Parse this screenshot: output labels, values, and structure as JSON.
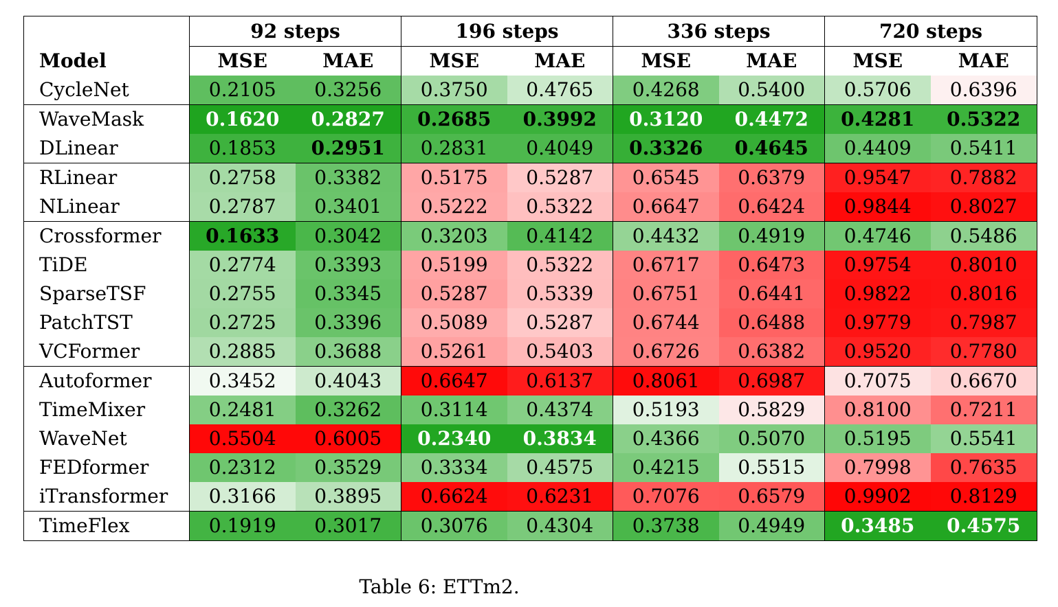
{
  "table": {
    "model_header": "Model",
    "groups": [
      "92 steps",
      "196 steps",
      "336 steps",
      "720 steps"
    ],
    "metrics": [
      "MSE",
      "MAE"
    ],
    "rows": [
      {
        "model": "CycleNet",
        "sep": false,
        "cells": [
          {
            "v": "0.2105",
            "bg": "#5fbe5f"
          },
          {
            "v": "0.3256",
            "bg": "#5fbe5f"
          },
          {
            "v": "0.3750",
            "bg": "#a6dba6"
          },
          {
            "v": "0.4765",
            "bg": "#cbeacb"
          },
          {
            "v": "0.4268",
            "bg": "#80cc80"
          },
          {
            "v": "0.5400",
            "bg": "#b1dfb1"
          },
          {
            "v": "0.5706",
            "bg": "#c2e6c2"
          },
          {
            "v": "0.6396",
            "bg": "#fdf0f0"
          }
        ]
      },
      {
        "model": "WaveMask",
        "sep": true,
        "cells": [
          {
            "v": "0.1620",
            "bg": "#1fa41f",
            "bold": true,
            "white": true
          },
          {
            "v": "0.2827",
            "bg": "#1fa41f",
            "bold": true,
            "white": true
          },
          {
            "v": "0.2685",
            "bg": "#3bb13b",
            "bold": true
          },
          {
            "v": "0.3992",
            "bg": "#3bb13b",
            "bold": true
          },
          {
            "v": "0.3120",
            "bg": "#21a621",
            "bold": true,
            "white": true
          },
          {
            "v": "0.4472",
            "bg": "#21a621",
            "bold": true,
            "white": true
          },
          {
            "v": "0.4281",
            "bg": "#3cb33c",
            "bold": true
          },
          {
            "v": "0.5322",
            "bg": "#3cb33c",
            "bold": true
          }
        ]
      },
      {
        "model": "DLinear",
        "sep": false,
        "cells": [
          {
            "v": "0.1853",
            "bg": "#3eb23e"
          },
          {
            "v": "0.2951",
            "bg": "#3eb23e",
            "bold": true
          },
          {
            "v": "0.2831",
            "bg": "#4db84d"
          },
          {
            "v": "0.4049",
            "bg": "#4db84d"
          },
          {
            "v": "0.3326",
            "bg": "#36af36",
            "bold": true
          },
          {
            "v": "0.4645",
            "bg": "#36af36",
            "bold": true
          },
          {
            "v": "0.4409",
            "bg": "#6ec56e"
          },
          {
            "v": "0.5411",
            "bg": "#7ac97a"
          }
        ]
      },
      {
        "model": "RLinear",
        "sep": true,
        "cells": [
          {
            "v": "0.2758",
            "bg": "#a5daa5"
          },
          {
            "v": "0.3382",
            "bg": "#6ac36a"
          },
          {
            "v": "0.5175",
            "bg": "#ffa6a6"
          },
          {
            "v": "0.5287",
            "bg": "#ffc8c8"
          },
          {
            "v": "0.6545",
            "bg": "#ff9494"
          },
          {
            "v": "0.6379",
            "bg": "#ff7070"
          },
          {
            "v": "0.9547",
            "bg": "#ff2020"
          },
          {
            "v": "0.7882",
            "bg": "#ff2424"
          }
        ]
      },
      {
        "model": "NLinear",
        "sep": false,
        "cells": [
          {
            "v": "0.2787",
            "bg": "#a8dba8"
          },
          {
            "v": "0.3401",
            "bg": "#6bc46b"
          },
          {
            "v": "0.5222",
            "bg": "#ffa8a8"
          },
          {
            "v": "0.5322",
            "bg": "#ffc0c0"
          },
          {
            "v": "0.6647",
            "bg": "#ff8c8c"
          },
          {
            "v": "0.6424",
            "bg": "#ff6c6c"
          },
          {
            "v": "0.9844",
            "bg": "#ff0a0a"
          },
          {
            "v": "0.8027",
            "bg": "#ff1010"
          }
        ]
      },
      {
        "model": "Crossformer",
        "sep": true,
        "cells": [
          {
            "v": "0.1633",
            "bg": "#28a828",
            "bold": true
          },
          {
            "v": "0.3042",
            "bg": "#4ab74a"
          },
          {
            "v": "0.3203",
            "bg": "#7acb7a"
          },
          {
            "v": "0.4142",
            "bg": "#55bb55"
          },
          {
            "v": "0.4432",
            "bg": "#95d495"
          },
          {
            "v": "0.4919",
            "bg": "#6ec56e"
          },
          {
            "v": "0.4746",
            "bg": "#72c772"
          },
          {
            "v": "0.5486",
            "bg": "#8ed18e"
          }
        ]
      },
      {
        "model": "TiDE",
        "sep": false,
        "cells": [
          {
            "v": "0.2774",
            "bg": "#a4daa4"
          },
          {
            "v": "0.3393",
            "bg": "#6ac46a"
          },
          {
            "v": "0.5199",
            "bg": "#ffa4a4"
          },
          {
            "v": "0.5322",
            "bg": "#ffbebe"
          },
          {
            "v": "0.6717",
            "bg": "#ff8484"
          },
          {
            "v": "0.6473",
            "bg": "#ff6464"
          },
          {
            "v": "0.9754",
            "bg": "#ff1515"
          },
          {
            "v": "0.8010",
            "bg": "#ff1515"
          }
        ]
      },
      {
        "model": "SparseTSF",
        "sep": false,
        "cells": [
          {
            "v": "0.2755",
            "bg": "#a3d9a3"
          },
          {
            "v": "0.3345",
            "bg": "#66c266"
          },
          {
            "v": "0.5287",
            "bg": "#ffa0a0"
          },
          {
            "v": "0.5339",
            "bg": "#ffbdbd"
          },
          {
            "v": "0.6751",
            "bg": "#ff8282"
          },
          {
            "v": "0.6441",
            "bg": "#ff6868"
          },
          {
            "v": "0.9822",
            "bg": "#ff1212"
          },
          {
            "v": "0.8016",
            "bg": "#ff1414"
          }
        ]
      },
      {
        "model": "PatchTST",
        "sep": false,
        "cells": [
          {
            "v": "0.2725",
            "bg": "#a0d8a0"
          },
          {
            "v": "0.3396",
            "bg": "#6ac36a"
          },
          {
            "v": "0.5089",
            "bg": "#ffacac"
          },
          {
            "v": "0.5287",
            "bg": "#ffc8c8"
          },
          {
            "v": "0.6744",
            "bg": "#ff8383"
          },
          {
            "v": "0.6488",
            "bg": "#ff6363"
          },
          {
            "v": "0.9779",
            "bg": "#ff1414"
          },
          {
            "v": "0.7987",
            "bg": "#ff1818"
          }
        ]
      },
      {
        "model": "VCFormer",
        "sep": false,
        "cells": [
          {
            "v": "0.2885",
            "bg": "#b2dfb2"
          },
          {
            "v": "0.3688",
            "bg": "#8ad08a"
          },
          {
            "v": "0.5261",
            "bg": "#ffa2a2"
          },
          {
            "v": "0.5403",
            "bg": "#ffb8b8"
          },
          {
            "v": "0.6726",
            "bg": "#ff8484"
          },
          {
            "v": "0.6382",
            "bg": "#ff6f6f"
          },
          {
            "v": "0.9520",
            "bg": "#ff2222"
          },
          {
            "v": "0.7780",
            "bg": "#ff2c2c"
          }
        ]
      },
      {
        "model": "Autoformer",
        "sep": true,
        "cells": [
          {
            "v": "0.3452",
            "bg": "#f1f9f1"
          },
          {
            "v": "0.4043",
            "bg": "#cdeacd"
          },
          {
            "v": "0.6647",
            "bg": "#ff0a0a"
          },
          {
            "v": "0.6137",
            "bg": "#ff1c1c"
          },
          {
            "v": "0.8061",
            "bg": "#ff0c0c"
          },
          {
            "v": "0.6987",
            "bg": "#ff1a1a"
          },
          {
            "v": "0.7075",
            "bg": "#fde2e2"
          },
          {
            "v": "0.6670",
            "bg": "#ffd3d3"
          }
        ]
      },
      {
        "model": "TimeMixer",
        "sep": false,
        "cells": [
          {
            "v": "0.2481",
            "bg": "#84ce84"
          },
          {
            "v": "0.3262",
            "bg": "#5ebe5e"
          },
          {
            "v": "0.3114",
            "bg": "#70c770"
          },
          {
            "v": "0.4374",
            "bg": "#86cf86"
          },
          {
            "v": "0.5193",
            "bg": "#e0f2e0"
          },
          {
            "v": "0.5829",
            "bg": "#fde7e7"
          },
          {
            "v": "0.8100",
            "bg": "#ff8f8f"
          },
          {
            "v": "0.7211",
            "bg": "#ff7070"
          }
        ]
      },
      {
        "model": "WaveNet",
        "sep": false,
        "cells": [
          {
            "v": "0.5504",
            "bg": "#ff0808"
          },
          {
            "v": "0.6005",
            "bg": "#ff0808"
          },
          {
            "v": "0.2340",
            "bg": "#22a622",
            "bold": true,
            "white": true
          },
          {
            "v": "0.3834",
            "bg": "#22a622",
            "bold": true,
            "white": true
          },
          {
            "v": "0.4366",
            "bg": "#8ad08a"
          },
          {
            "v": "0.5070",
            "bg": "#80cc80"
          },
          {
            "v": "0.5195",
            "bg": "#7ecb7e"
          },
          {
            "v": "0.5541",
            "bg": "#94d494"
          }
        ]
      },
      {
        "model": "FEDformer",
        "sep": false,
        "cells": [
          {
            "v": "0.2312",
            "bg": "#6fc66f"
          },
          {
            "v": "0.3529",
            "bg": "#78c978"
          },
          {
            "v": "0.3334",
            "bg": "#88cf88"
          },
          {
            "v": "0.4575",
            "bg": "#a6daa6"
          },
          {
            "v": "0.4215",
            "bg": "#7bca7b"
          },
          {
            "v": "0.5515",
            "bg": "#e2f3e2"
          },
          {
            "v": "0.7998",
            "bg": "#ff9494"
          },
          {
            "v": "0.7635",
            "bg": "#ff4848"
          }
        ]
      },
      {
        "model": "iTransformer",
        "sep": false,
        "cells": [
          {
            "v": "0.3166",
            "bg": "#d4edd4"
          },
          {
            "v": "0.3895",
            "bg": "#b8e1b8"
          },
          {
            "v": "0.6624",
            "bg": "#ff0c0c"
          },
          {
            "v": "0.6231",
            "bg": "#ff1010"
          },
          {
            "v": "0.7076",
            "bg": "#ff5a5a"
          },
          {
            "v": "0.6579",
            "bg": "#ff5858"
          },
          {
            "v": "0.9902",
            "bg": "#ff0606"
          },
          {
            "v": "0.8129",
            "bg": "#ff0808"
          }
        ]
      },
      {
        "model": "TimeFlex",
        "sep": true,
        "cells": [
          {
            "v": "0.1919",
            "bg": "#43b443"
          },
          {
            "v": "0.3017",
            "bg": "#43b443"
          },
          {
            "v": "0.3076",
            "bg": "#6bc46b"
          },
          {
            "v": "0.4304",
            "bg": "#7bca7b"
          },
          {
            "v": "0.3738",
            "bg": "#4ab74a"
          },
          {
            "v": "0.4949",
            "bg": "#72c772"
          },
          {
            "v": "0.3485",
            "bg": "#22a622",
            "bold": true,
            "white": true
          },
          {
            "v": "0.4575",
            "bg": "#22a622",
            "bold": true,
            "white": true
          }
        ]
      }
    ]
  },
  "caption": "Table 6: ETTm2."
}
